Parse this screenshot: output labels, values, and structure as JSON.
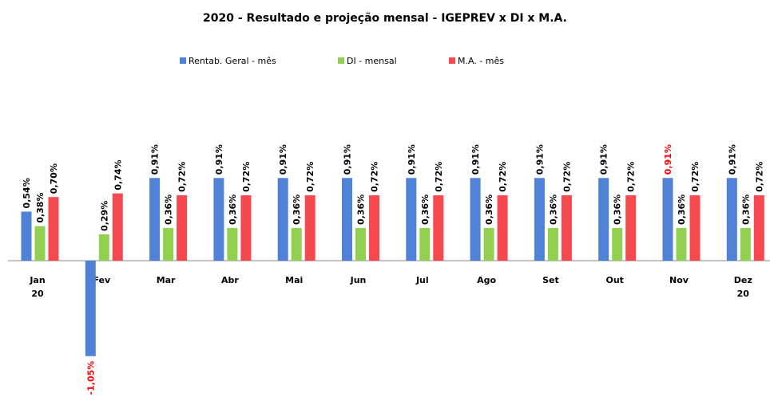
{
  "chart_data": {
    "type": "bar",
    "title": "2020 - Resultado e projeção mensal - IGEPREV x DI x M.A.",
    "categories": [
      "Jan 20",
      "Fev",
      "Mar",
      "Abr",
      "Mai",
      "Jun",
      "Jul",
      "Ago",
      "Set",
      "Out",
      "Nov",
      "Dez 20"
    ],
    "ylim": [
      -1.5,
      1.5
    ],
    "grid": false,
    "legend": "top",
    "series": [
      {
        "name": "Rentab. Geral - mês",
        "color": "#4f81d6",
        "values": [
          0.54,
          -1.05,
          0.91,
          0.91,
          0.91,
          0.91,
          0.91,
          0.91,
          0.91,
          0.91,
          0.91,
          0.91
        ],
        "value_labels": [
          "0,54%",
          "-1,05%",
          "0,91%",
          "0,91%",
          "0,91%",
          "0,91%",
          "0,91%",
          "0,91%",
          "0,91%",
          "0,91%",
          "0,91%",
          "0,91%"
        ],
        "value_label_colors": [
          "#000000",
          "#ff0000",
          "#000000",
          "#000000",
          "#000000",
          "#000000",
          "#000000",
          "#000000",
          "#000000",
          "#000000",
          "#ff0000",
          "#000000"
        ]
      },
      {
        "name": "DI - mensal",
        "color": "#92d050",
        "values": [
          0.38,
          0.29,
          0.36,
          0.36,
          0.36,
          0.36,
          0.36,
          0.36,
          0.36,
          0.36,
          0.36,
          0.36
        ],
        "value_labels": [
          "0,38%",
          "0,29%",
          "0,36%",
          "0,36%",
          "0,36%",
          "0,36%",
          "0,36%",
          "0,36%",
          "0,36%",
          "0,36%",
          "0,36%",
          "0,36%"
        ]
      },
      {
        "name": "M.A. - mês",
        "color": "#f5484f",
        "values": [
          0.7,
          0.74,
          0.72,
          0.72,
          0.72,
          0.72,
          0.72,
          0.72,
          0.72,
          0.72,
          0.72,
          0.72
        ],
        "value_labels": [
          "0,70%",
          "0,74%",
          "0,72%",
          "0,72%",
          "0,72%",
          "0,72%",
          "0,72%",
          "0,72%",
          "0,72%",
          "0,72%",
          "0,72%",
          "0,72%"
        ]
      }
    ]
  }
}
